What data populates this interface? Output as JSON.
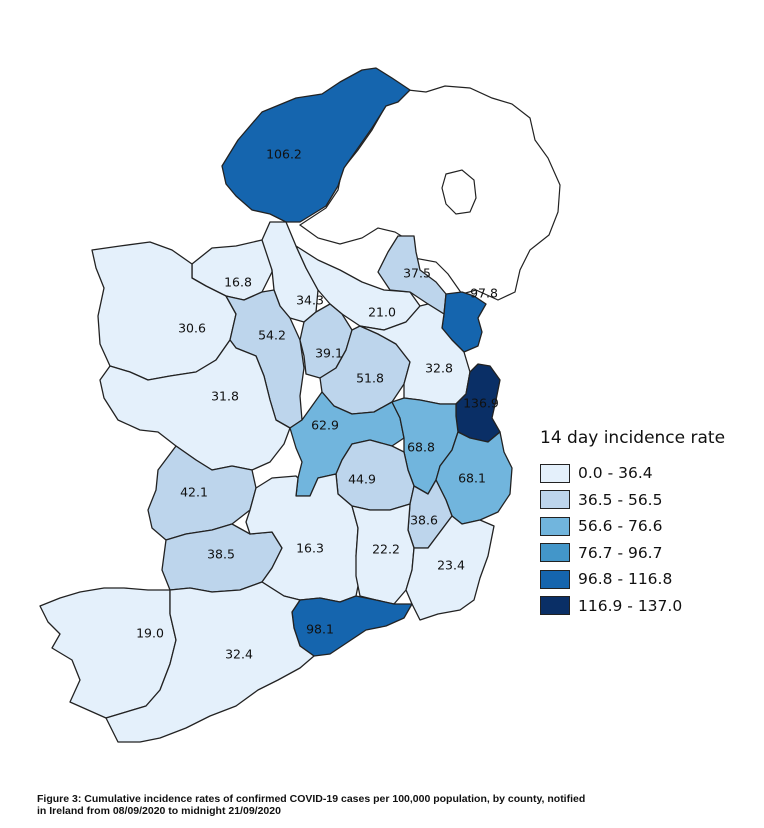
{
  "map": {
    "legend": {
      "title": "14 day incidence rate",
      "bins": [
        {
          "label": "0.0 - 36.4",
          "color": "#e4f0fb"
        },
        {
          "label": "36.5 - 56.5",
          "color": "#bdd5ec"
        },
        {
          "label": "56.6 - 76.6",
          "color": "#71b5dd"
        },
        {
          "label": "76.7 - 96.7",
          "color": "#4396c9"
        },
        {
          "label": "96.8 - 116.8",
          "color": "#1565ae"
        },
        {
          "label": "116.9 - 137.0",
          "color": "#0a2f66"
        }
      ]
    },
    "counties": [
      {
        "value": "106.2",
        "bin": 4
      },
      {
        "value": "16.8",
        "bin": 0
      },
      {
        "value": "34.3",
        "bin": 0
      },
      {
        "value": "21.0",
        "bin": 0
      },
      {
        "value": "37.5",
        "bin": 1
      },
      {
        "value": "97.8",
        "bin": 4
      },
      {
        "value": "30.6",
        "bin": 0
      },
      {
        "value": "54.2",
        "bin": 1
      },
      {
        "value": "39.1",
        "bin": 1
      },
      {
        "value": "51.8",
        "bin": 1
      },
      {
        "value": "32.8",
        "bin": 0
      },
      {
        "value": "136.9",
        "bin": 5
      },
      {
        "value": "31.8",
        "bin": 0
      },
      {
        "value": "62.9",
        "bin": 2
      },
      {
        "value": "68.8",
        "bin": 2
      },
      {
        "value": "44.9",
        "bin": 1
      },
      {
        "value": "68.1",
        "bin": 2
      },
      {
        "value": "42.1",
        "bin": 1
      },
      {
        "value": "38.6",
        "bin": 1
      },
      {
        "value": "38.5",
        "bin": 1
      },
      {
        "value": "16.3",
        "bin": 0
      },
      {
        "value": "22.2",
        "bin": 0
      },
      {
        "value": "23.4",
        "bin": 0
      },
      {
        "value": "98.1",
        "bin": 4
      },
      {
        "value": "19.0",
        "bin": 0
      },
      {
        "value": "32.4",
        "bin": 0
      }
    ]
  },
  "caption": {
    "line1": "Figure 3: Cumulative incidence rates of confirmed COVID-19 cases per 100,000 population, by county, notified",
    "line2": "in Ireland from 08/09/2020 to midnight 21/09/2020"
  }
}
